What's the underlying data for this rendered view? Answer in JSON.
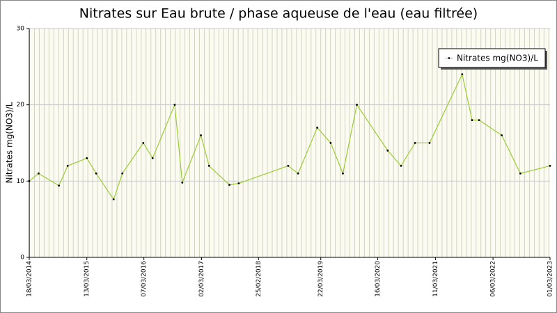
{
  "chart_data": {
    "type": "line",
    "title": "Nitrates sur Eau brute / phase aqueuse de l'eau (eau filtrée)",
    "y_label": "Nitrates mg(NO3)/L",
    "x": [
      2014.21,
      2014.37,
      2014.72,
      2014.87,
      2015.2,
      2015.36,
      2015.66,
      2015.81,
      2016.17,
      2016.33,
      2016.71,
      2016.84,
      2017.16,
      2017.3,
      2017.65,
      2017.81,
      2018.66,
      2018.83,
      2019.16,
      2019.39,
      2019.6,
      2019.84,
      2020.37,
      2020.6,
      2020.84,
      2021.09,
      2021.65,
      2021.82,
      2021.94,
      2022.33,
      2022.65,
      2023.16
    ],
    "series": [
      {
        "name": "Nitrates mg(NO3)/L",
        "color": "#9acd32",
        "values": [
          10,
          11,
          9.4,
          12,
          13,
          11,
          7.6,
          11,
          15,
          13,
          20,
          9.8,
          16,
          12,
          9.5,
          9.7,
          12,
          11,
          17,
          15,
          11,
          20,
          14,
          12,
          15,
          15,
          24,
          18,
          18,
          16,
          11,
          12
        ]
      }
    ],
    "xlim": [
      2014.21,
      2023.16
    ],
    "xticks": [
      {
        "value": 2014.21,
        "label": "18/03/2014"
      },
      {
        "value": 2015.2,
        "label": "13/03/2015"
      },
      {
        "value": 2016.18,
        "label": "07/03/2016"
      },
      {
        "value": 2017.17,
        "label": "02/03/2017"
      },
      {
        "value": 2018.15,
        "label": "25/02/2018"
      },
      {
        "value": 2019.22,
        "label": "22/03/2019"
      },
      {
        "value": 2020.2,
        "label": "16/03/2020"
      },
      {
        "value": 2021.19,
        "label": "11/03/2021"
      },
      {
        "value": 2022.18,
        "label": "06/03/2022"
      },
      {
        "value": 2023.16,
        "label": "01/03/2023"
      }
    ],
    "ylim": [
      0,
      30
    ],
    "yticks": [
      0,
      10,
      20,
      30
    ],
    "grid": true,
    "legend": "upper right"
  }
}
